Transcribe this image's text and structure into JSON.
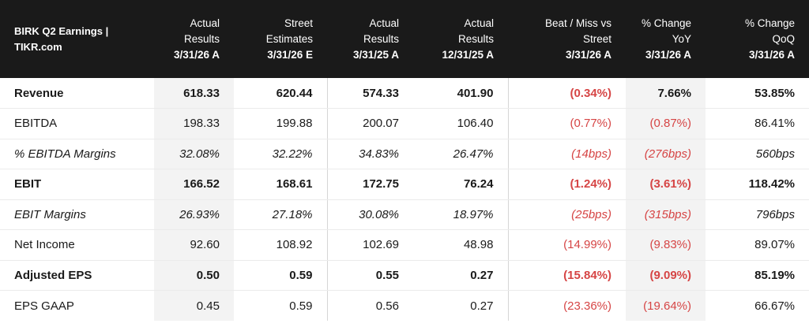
{
  "header": {
    "title": "BIRK Q2 Earnings |",
    "source": "TIKR.com",
    "columns": [
      {
        "line1": "Actual",
        "line2": "Results",
        "date": "3/31/26 A"
      },
      {
        "line1": "Street",
        "line2": "Estimates",
        "date": "3/31/26 E"
      },
      {
        "line1": "Actual",
        "line2": "Results",
        "date": "3/31/25 A"
      },
      {
        "line1": "Actual",
        "line2": "Results",
        "date": "12/31/25 A"
      },
      {
        "line1": "Beat / Miss vs",
        "line2": "Street",
        "date": "3/31/26 A"
      },
      {
        "line1": "% Change",
        "line2": "YoY",
        "date": "3/31/26 A"
      },
      {
        "line1": "% Change",
        "line2": "QoQ",
        "date": "3/31/26 A"
      }
    ]
  },
  "rows": [
    {
      "label": "Revenue",
      "values": [
        "618.33",
        "620.44",
        "574.33",
        "401.90",
        "(0.34%)",
        "7.66%",
        "53.85%"
      ]
    },
    {
      "label": "EBITDA",
      "values": [
        "198.33",
        "199.88",
        "200.07",
        "106.40",
        "(0.77%)",
        "(0.87%)",
        "86.41%"
      ]
    },
    {
      "label": "% EBITDA Margins",
      "values": [
        "32.08%",
        "32.22%",
        "34.83%",
        "26.47%",
        "(14bps)",
        "(276bps)",
        "560bps"
      ]
    },
    {
      "label": "EBIT",
      "values": [
        "166.52",
        "168.61",
        "172.75",
        "76.24",
        "(1.24%)",
        "(3.61%)",
        "118.42%"
      ]
    },
    {
      "label": "EBIT Margins",
      "values": [
        "26.93%",
        "27.18%",
        "30.08%",
        "18.97%",
        "(25bps)",
        "(315bps)",
        "796bps"
      ]
    },
    {
      "label": "Net Income",
      "values": [
        "92.60",
        "108.92",
        "102.69",
        "48.98",
        "(14.99%)",
        "(9.83%)",
        "89.07%"
      ]
    },
    {
      "label": "Adjusted EPS",
      "values": [
        "0.50",
        "0.59",
        "0.55",
        "0.27",
        "(15.84%)",
        "(9.09%)",
        "85.19%"
      ]
    },
    {
      "label": "EPS GAAP",
      "values": [
        "0.45",
        "0.59",
        "0.56",
        "0.27",
        "(23.36%)",
        "(19.64%)",
        "66.67%"
      ]
    }
  ],
  "colors": {
    "header_bg": "#1a1a1a",
    "negative": "#d64545",
    "shade": "#f3f3f3"
  }
}
